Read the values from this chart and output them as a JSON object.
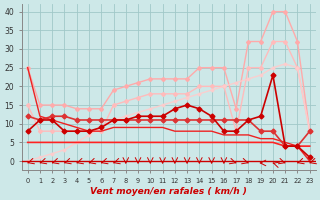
{
  "xlabel": "Vent moyen/en rafales ( km/h )",
  "background_color": "#cde8e8",
  "grid_color": "#a0c8c8",
  "ylim": [
    -1,
    42
  ],
  "xlim": [
    0,
    23
  ],
  "yticks": [
    0,
    5,
    10,
    15,
    20,
    25,
    30,
    35,
    40
  ],
  "series": [
    {
      "y": [
        25,
        15,
        15,
        15,
        14,
        14,
        14,
        19,
        20,
        21,
        22,
        22,
        22,
        22,
        25,
        25,
        25,
        14,
        32,
        32,
        40,
        40,
        32,
        8
      ],
      "color": "#ffaaaa",
      "linewidth": 1.0,
      "marker": "D",
      "markersize": 2.0,
      "zorder": 2,
      "alpha": 1.0
    },
    {
      "y": [
        15,
        8,
        8,
        8,
        8,
        8,
        8,
        15,
        16,
        17,
        18,
        18,
        18,
        18,
        20,
        20,
        20,
        8,
        25,
        25,
        32,
        32,
        25,
        8
      ],
      "color": "#ffbbbb",
      "linewidth": 1.0,
      "marker": "D",
      "markersize": 2.0,
      "zorder": 2,
      "alpha": 1.0
    },
    {
      "y": [
        0,
        1,
        2,
        3,
        5,
        7,
        9,
        11,
        12,
        13,
        14,
        15,
        16,
        17,
        18,
        19,
        20,
        21,
        22,
        23,
        25,
        26,
        25,
        8
      ],
      "color": "#ffcccc",
      "linewidth": 1.0,
      "marker": "D",
      "markersize": 1.5,
      "zorder": 2,
      "alpha": 0.9
    },
    {
      "y": [
        8,
        11,
        11,
        8,
        8,
        8,
        9,
        11,
        11,
        12,
        12,
        12,
        14,
        15,
        14,
        12,
        8,
        8,
        11,
        12,
        23,
        4,
        4,
        1
      ],
      "color": "#cc0000",
      "linewidth": 1.2,
      "marker": "D",
      "markersize": 2.5,
      "zorder": 5,
      "alpha": 1.0
    },
    {
      "y": [
        12,
        11,
        12,
        12,
        11,
        11,
        11,
        11,
        11,
        11,
        11,
        11,
        11,
        11,
        11,
        11,
        11,
        11,
        11,
        8,
        8,
        4,
        4,
        8
      ],
      "color": "#dd3333",
      "linewidth": 1.2,
      "marker": "D",
      "markersize": 2.5,
      "zorder": 4,
      "alpha": 1.0
    },
    {
      "y": [
        5,
        5,
        5,
        5,
        5,
        5,
        5,
        5,
        5,
        5,
        5,
        5,
        5,
        5,
        5,
        5,
        5,
        5,
        5,
        5,
        5,
        4,
        4,
        4
      ],
      "color": "#ff2222",
      "linewidth": 1.2,
      "marker": null,
      "markersize": 0,
      "zorder": 3,
      "alpha": 1.0
    },
    {
      "y": [
        25,
        12,
        11,
        10,
        9,
        8,
        8,
        9,
        9,
        9,
        9,
        9,
        8,
        8,
        8,
        8,
        7,
        7,
        7,
        6,
        6,
        5,
        4,
        0
      ],
      "color": "#ee2222",
      "linewidth": 1.0,
      "marker": null,
      "markersize": 0,
      "zorder": 3,
      "alpha": 1.0
    }
  ],
  "wind_directions": [
    225,
    225,
    225,
    225,
    225,
    225,
    225,
    225,
    180,
    180,
    180,
    180,
    180,
    180,
    180,
    180,
    180,
    135,
    135,
    270,
    315,
    135,
    225,
    225
  ],
  "arrow_color": "#cc0000"
}
